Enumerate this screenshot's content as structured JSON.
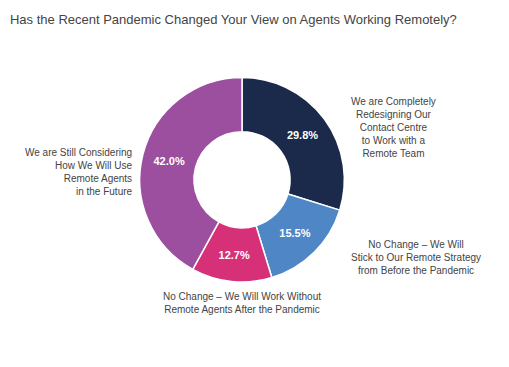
{
  "chart_data": {
    "type": "donut",
    "title": "Has the Recent Pandemic Changed Your View on Agents Working Remotely?",
    "categories": [
      "We are Completely\nRedesigning Our\nContact Centre\nto Work with a\nRemote Team",
      "No Change – We Will\nStick to Our Remote Strategy\nfrom Before the Pandemic",
      "No Change – We Will Work Without\nRemote Agents After the Pandemic",
      "We are Still Considering\nHow We Will Use\nRemote Agents\nin the Future"
    ],
    "values": [
      29.8,
      15.5,
      12.7,
      42.0
    ],
    "value_labels": [
      "29.8%",
      "15.5%",
      "12.7%",
      "42.0%"
    ],
    "colors": [
      "#1b2a4a",
      "#4f86c6",
      "#d63078",
      "#9b4f9e"
    ]
  }
}
